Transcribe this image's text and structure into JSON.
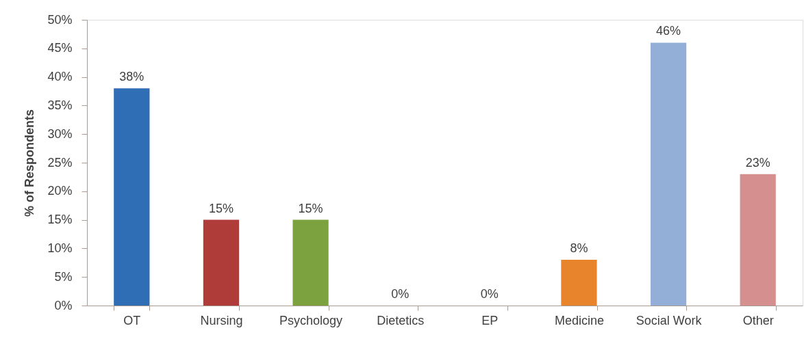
{
  "chart_data": {
    "type": "bar",
    "ylabel": "% of Respondents",
    "categories": [
      "OT",
      "Nursing",
      "Psychology",
      "Dietetics",
      "EP",
      "Medicine",
      "Social Work",
      "Other"
    ],
    "values": [
      38,
      15,
      15,
      0,
      0,
      8,
      46,
      23
    ],
    "value_labels": [
      "38%",
      "15%",
      "15%",
      "0%",
      "0%",
      "8%",
      "46%",
      "23%"
    ],
    "colors": [
      "#2f6db4",
      "#b03c3a",
      "#7ba23f",
      "#b03c3a",
      "#2f6db4",
      "#e8842b",
      "#93afd8",
      "#d68f8f"
    ],
    "ylim": [
      0,
      50
    ],
    "yticks": [
      {
        "value": 0,
        "label": "0%"
      },
      {
        "value": 5,
        "label": "5%"
      },
      {
        "value": 10,
        "label": "10%"
      },
      {
        "value": 15,
        "label": "15%"
      },
      {
        "value": 20,
        "label": "20%"
      },
      {
        "value": 25,
        "label": "25%"
      },
      {
        "value": 30,
        "label": "30%"
      },
      {
        "value": 35,
        "label": "35%"
      },
      {
        "value": 40,
        "label": "40%"
      },
      {
        "value": 45,
        "label": "45%"
      },
      {
        "value": 50,
        "label": "50%"
      }
    ]
  }
}
